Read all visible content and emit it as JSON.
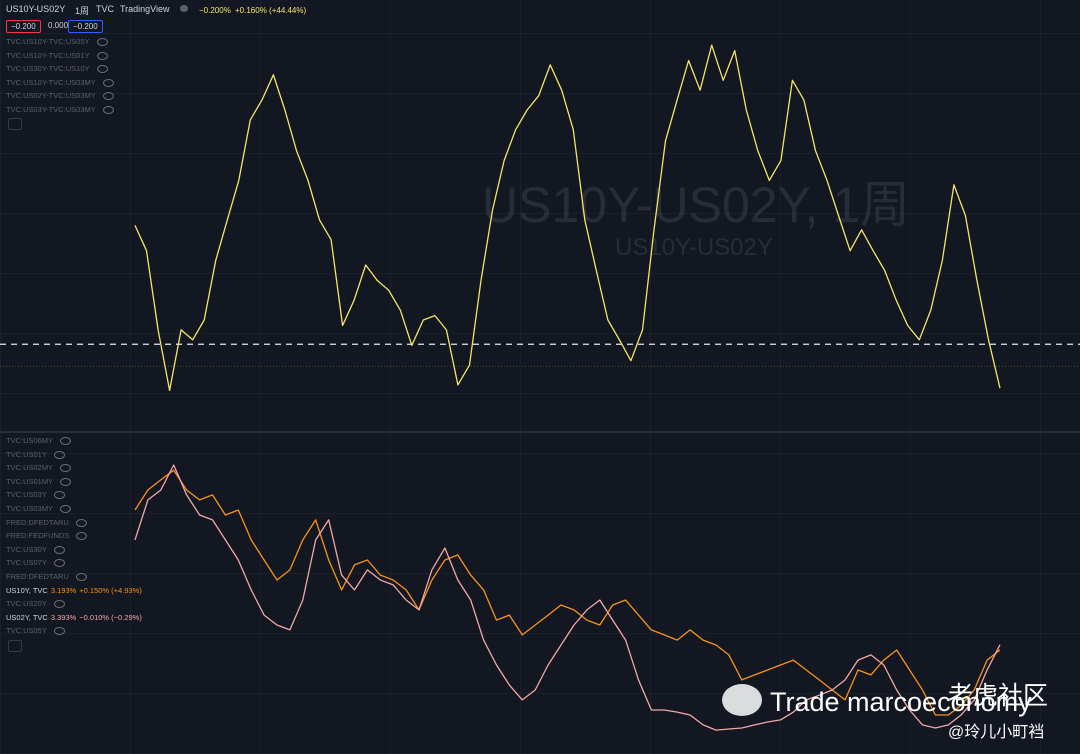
{
  "header": {
    "symbol": "US10Y-US02Y",
    "interval": "1周",
    "source": "TVC",
    "platform": "TradingView",
    "last": "−0.200%",
    "change": "+0.160% (+44.44%)",
    "badges": [
      "−0.200",
      "0.000",
      "−0.200"
    ]
  },
  "top_pane": {
    "watermark": "US10Y-US02Y, 1周",
    "watermark_sub": "US10Y-US02Y",
    "legend": [
      "TVC:US10Y-TVC:US05Y",
      "TVC:US10Y-TVC:US01Y",
      "TVC:US30Y-TVC:US10Y",
      "TVC:US10Y-TVC:US03MY",
      "TVC:US02Y-TVC:US03MY",
      "TVC:US03Y-TVC:US03MY"
    ]
  },
  "bottom_pane": {
    "legend": [
      {
        "label": "TVC:US06MY"
      },
      {
        "label": "TVC:US01Y"
      },
      {
        "label": "TVC:US02MY"
      },
      {
        "label": "TVC:US01MY"
      },
      {
        "label": "TVC:US03Y"
      },
      {
        "label": "TVC:US03MY"
      },
      {
        "label": "FRED:DFEDTARU"
      },
      {
        "label": "FRED:FEDFUNDS"
      },
      {
        "label": "TVC:US30Y"
      },
      {
        "label": "TVC:US07Y"
      },
      {
        "label": "FRED:DFEDTARU"
      },
      {
        "label": "US10Y, TVC",
        "last": "3.193%",
        "change": "+0.150% (+4.93%)"
      },
      {
        "label": "TVC:US20Y"
      },
      {
        "label": "US02Y, TVC",
        "last": "3.393%",
        "change": "−0.010% (−0.29%)"
      },
      {
        "label": "TVC:US05Y"
      }
    ]
  },
  "watermark": {
    "brand": "Trade marcoeconomy",
    "community": "老虎社区",
    "author": "@玲儿小町裆"
  },
  "chart_data": [
    {
      "type": "line",
      "ylim": [
        -0.58,
        3.33
      ],
      "reference_lines": [
        {
          "value": 0.2,
          "style": "dashed",
          "color": "#ffffff"
        },
        {
          "value": 0,
          "style": "dotted",
          "color": "#8a8a3a"
        }
      ],
      "series": [
        {
          "name": "US10Y-US02Y",
          "color": "#f5e663",
          "values": [
            1.28,
            1.05,
            0.33,
            -0.22,
            0.33,
            0.24,
            0.42,
            0.96,
            1.33,
            1.69,
            2.24,
            2.42,
            2.65,
            2.33,
            1.96,
            1.69,
            1.33,
            1.15,
            0.37,
            0.6,
            0.92,
            0.78,
            0.69,
            0.51,
            0.19,
            0.42,
            0.46,
            0.33,
            -0.17,
            0.01,
            0.78,
            1.42,
            1.87,
            2.15,
            2.33,
            2.46,
            2.74,
            2.51,
            2.15,
            1.33,
            0.87,
            0.42,
            0.24,
            0.05,
            0.33,
            1.24,
            2.05,
            2.42,
            2.78,
            2.51,
            2.92,
            2.6,
            2.87,
            2.33,
            1.96,
            1.69,
            1.87,
            2.6,
            2.42,
            1.96,
            1.69,
            1.37,
            1.05,
            1.24,
            1.05,
            0.87,
            0.6,
            0.37,
            0.24,
            0.51,
            0.96,
            1.65,
            1.37,
            0.78,
            0.24,
            -0.2
          ]
        }
      ]
    },
    {
      "type": "line",
      "ylim": [
        -0.81,
        11.57
      ],
      "series": [
        {
          "name": "US10Y",
          "color": "#f7931a",
          "values": [
            8.57,
            9.34,
            9.73,
            10.1,
            9.34,
            8.96,
            9.15,
            8.38,
            8.57,
            7.42,
            6.65,
            5.88,
            6.27,
            7.42,
            8.19,
            6.65,
            5.5,
            6.46,
            6.65,
            6.07,
            5.88,
            5.5,
            4.73,
            5.88,
            6.65,
            6.84,
            6.07,
            5.5,
            4.34,
            4.53,
            3.77,
            4.15,
            4.53,
            4.92,
            4.73,
            4.34,
            4.15,
            4.92,
            5.11,
            4.53,
            3.96,
            3.77,
            3.57,
            3.96,
            3.57,
            3.38,
            3.0,
            2.04,
            2.23,
            2.42,
            2.61,
            2.8,
            2.42,
            2.04,
            1.65,
            1.27,
            2.42,
            2.23,
            2.8,
            3.19,
            2.42,
            1.65,
            0.69,
            0.69,
            1.07,
            1.65,
            2.8,
            3.193
          ]
        },
        {
          "name": "US02Y",
          "color": "#f2a7a7",
          "values": [
            7.42,
            8.96,
            9.34,
            10.3,
            9.15,
            8.38,
            8.19,
            7.42,
            6.65,
            5.5,
            4.53,
            4.15,
            3.96,
            5.11,
            7.42,
            8.19,
            6.07,
            5.5,
            6.27,
            5.88,
            5.69,
            5.11,
            4.73,
            6.27,
            7.11,
            5.88,
            5.11,
            3.57,
            2.61,
            1.84,
            1.27,
            1.65,
            2.61,
            3.38,
            4.15,
            4.73,
            5.11,
            4.34,
            3.57,
            2.04,
            0.88,
            0.88,
            0.8,
            0.69,
            0.31,
            0.11,
            0.15,
            0.19,
            0.31,
            0.42,
            0.5,
            0.8,
            1.27,
            1.45,
            1.65,
            2.04,
            2.8,
            3.0,
            2.61,
            1.65,
            0.88,
            0.31,
            0.19,
            0.31,
            0.7,
            1.27,
            2.42,
            3.393
          ]
        }
      ]
    }
  ]
}
